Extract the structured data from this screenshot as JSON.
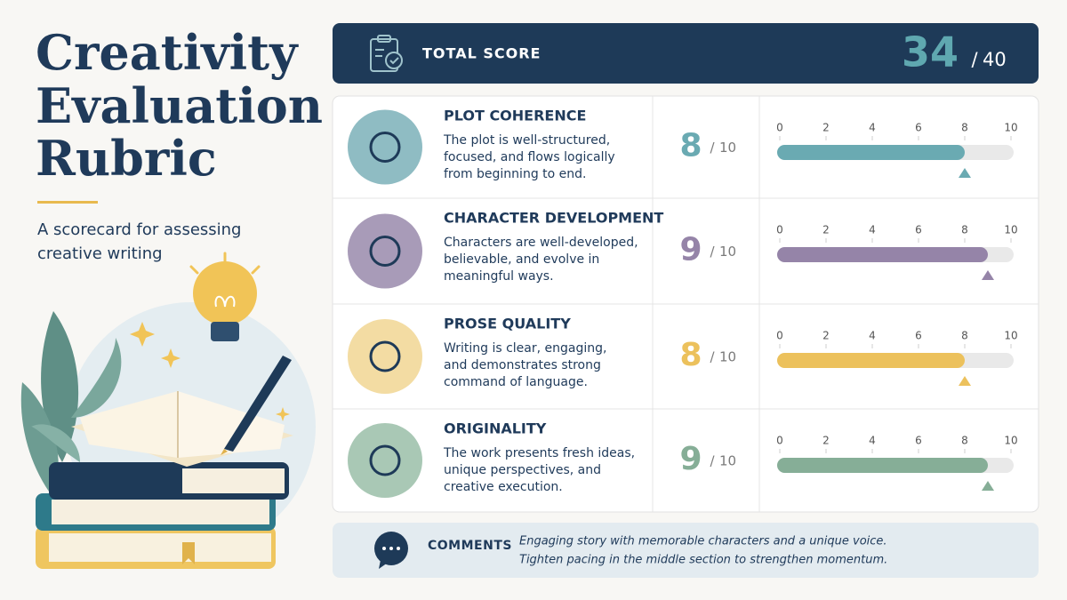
{
  "header": {
    "title_lines": [
      "Creativity",
      "Evaluation",
      "Rubric"
    ],
    "subtitle_lines": [
      "A scorecard for assessing",
      "creative writing"
    ]
  },
  "separator": "/",
  "total": {
    "label": "TOTAL SCORE",
    "score": 34,
    "max": 40
  },
  "scale_ticks": [
    0,
    2,
    4,
    6,
    8,
    10
  ],
  "criteria": [
    {
      "name": "PLOT COHERENCE",
      "description": [
        "The plot is well-structured,",
        "focused, and flows logically",
        "from beginning to end."
      ],
      "score": 8,
      "max": 10,
      "color": "#6aaab2",
      "icon_color": "#8fbcc3"
    },
    {
      "name": "CHARACTER DEVELOPMENT",
      "description": [
        "Characters are well-developed,",
        "believable, and evolve in",
        "meaningful ways."
      ],
      "score": 9,
      "max": 10,
      "color": "#9584a8",
      "icon_color": "#a89bb8"
    },
    {
      "name": "PROSE QUALITY",
      "description": [
        "Writing is clear, engaging,",
        "and demonstrates strong",
        "command of language."
      ],
      "score": 8,
      "max": 10,
      "color": "#ecc15c",
      "icon_color": "#f3dca3"
    },
    {
      "name": "ORIGINALITY",
      "description": [
        "The work presents fresh ideas,",
        "unique perspectives, and",
        "creative execution."
      ],
      "score": 9,
      "max": 10,
      "color": "#86ae97",
      "icon_color": "#a9c8b5"
    }
  ],
  "comments": {
    "label": "COMMENTS",
    "lines": [
      "Engaging story with memorable characters and a unique voice.",
      "Tighten pacing in the middle section to strengthen momentum."
    ]
  }
}
